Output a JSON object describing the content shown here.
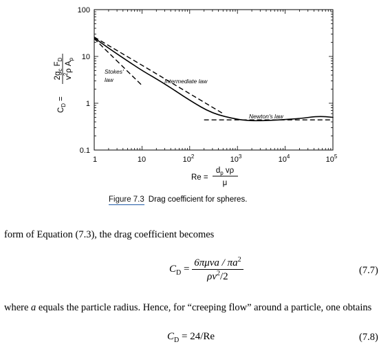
{
  "figure": {
    "y_ticks": [
      "100",
      "10",
      "1",
      "0.1"
    ],
    "x_ticks": [
      {
        "base": "1",
        "exp": ""
      },
      {
        "base": "10",
        "exp": ""
      },
      {
        "base": "10",
        "exp": "2"
      },
      {
        "base": "10",
        "exp": "3"
      },
      {
        "base": "10",
        "exp": "4"
      },
      {
        "base": "10",
        "exp": "5"
      }
    ],
    "ylabel_lhs": "C",
    "ylabel_lhs_sub": "D",
    "ylabel_num": "2g",
    "ylabel_num_sub": "c",
    "ylabel_num_tail": " F",
    "ylabel_num_tail_sub": "D",
    "ylabel_den": "v",
    "ylabel_den_sup": "2",
    "ylabel_den_rho": "ρ A",
    "ylabel_den_sub": "p",
    "xlabel_lhs": "Re =",
    "xlabel_num": "d",
    "xlabel_num_sub": "p",
    "xlabel_num_tail": " vρ",
    "xlabel_den": "μ",
    "annotations": {
      "stokes_line1": "Stokes'",
      "stokes_line2": "law",
      "intermediate": "Intermediate law",
      "newton": "Newton's law"
    }
  },
  "caption": {
    "number": "Figure 7.3",
    "text": "Drag coefficient for spheres."
  },
  "body": {
    "para1": "form of Equation (7.3), the drag coefficient becomes",
    "eq77": {
      "lhs": "C",
      "lhs_sub": "D",
      "num": "6πμva / πa",
      "num_sup": "2",
      "den": "ρv",
      "den_sup": "2",
      "den_tail": "/2",
      "number": "(7.7)"
    },
    "para2_pre": "where ",
    "para2_var": "a",
    "para2_post": " equals the particle radius. Hence, for “creeping flow” around a particle, one obtains",
    "eq78": {
      "lhs": "C",
      "lhs_sub": "D",
      "rhs": " = 24/Re",
      "number": "(7.8)"
    }
  },
  "chart_data": {
    "type": "line",
    "x_scale": "log",
    "y_scale": "log",
    "xlim": [
      1,
      100000
    ],
    "ylim": [
      0.1,
      100
    ],
    "series": [
      {
        "style": "solid",
        "x": [
          1,
          2,
          5,
          10,
          30,
          100,
          300,
          1000,
          2000,
          5000,
          10000,
          20000,
          50000,
          100000
        ],
        "y": [
          25,
          15,
          8,
          5,
          2.6,
          1.15,
          0.6,
          0.45,
          0.42,
          0.43,
          0.45,
          0.47,
          0.53,
          0.5
        ]
      },
      {
        "style": "dashed",
        "x": [
          1,
          2,
          5,
          10
        ],
        "y": [
          24,
          12,
          4.8,
          2.4
        ]
      },
      {
        "style": "dashed",
        "x": [
          1,
          10,
          100,
          500
        ],
        "y": [
          26,
          6.5,
          1.6,
          0.6
        ]
      },
      {
        "style": "dashed",
        "x": [
          200,
          100000
        ],
        "y": [
          0.44,
          0.44
        ]
      }
    ]
  }
}
